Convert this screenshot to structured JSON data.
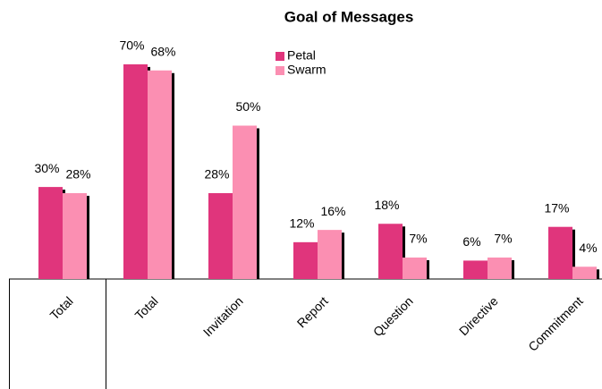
{
  "chart_data": {
    "type": "bar",
    "title": "Goal of Messages",
    "categories": [
      "Total",
      "Total",
      "Invitation",
      "Report",
      "Question",
      "Directive",
      "Commitment"
    ],
    "series": [
      {
        "name": "Petal",
        "color": "#e0357c",
        "values": [
          30,
          70,
          28,
          12,
          18,
          6,
          17
        ],
        "value_labels": [
          "30%",
          "70%",
          "28%",
          "12%",
          "18%",
          "6%",
          "17%"
        ]
      },
      {
        "name": "Swarm",
        "color": "#fb8fb2",
        "values": [
          28,
          68,
          50,
          16,
          7,
          7,
          4
        ],
        "value_labels": [
          "28%",
          "68%",
          "50%",
          "16%",
          "7%",
          "7%",
          "4%"
        ]
      }
    ],
    "ylim": [
      0,
      80
    ]
  }
}
